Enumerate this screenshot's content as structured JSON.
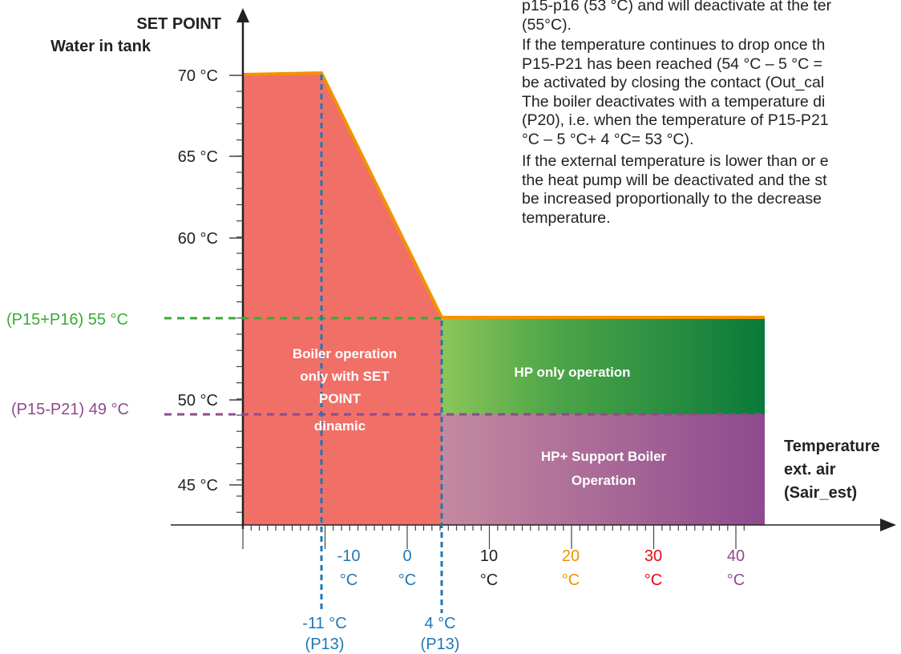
{
  "axis": {
    "y_title": "SET POINT",
    "y_subtitle": "Water in tank",
    "x_title": [
      "Temperature",
      "ext. air",
      "(Sair_est)"
    ]
  },
  "y_ticks": [
    "70 °C",
    "65 °C",
    "60 °C",
    "50 °C",
    "45 °C"
  ],
  "x_ticks": [
    {
      "value": "-10",
      "unit": "°C",
      "color": "#1f77b4"
    },
    {
      "value": "0",
      "unit": "°C",
      "color": "#1f77b4"
    },
    {
      "value": "10",
      "unit": "°C",
      "color": "#222222"
    },
    {
      "value": "20",
      "unit": "°C",
      "color": "#f39200"
    },
    {
      "value": "30",
      "unit": "°C",
      "color": "#e30613"
    },
    {
      "value": "40",
      "unit": "°C",
      "color": "#8e4a8e"
    }
  ],
  "markers": {
    "p15_p16": "(P15+P16) 55 °C",
    "p15_p21": "(P15-P21) 49 °C",
    "p13_low_value": "-11 °C",
    "p13_low_param": "(P13)",
    "p13_high_value": "4 °C",
    "p13_high_param": "(P13)"
  },
  "regions": {
    "boiler": [
      "Boiler operation",
      "only with SET",
      "POINT",
      "dinamic"
    ],
    "hp_only": "HP only operation",
    "hp_support": [
      "HP+ Support Boiler",
      "Operation"
    ]
  },
  "text_lines": [
    "p15-p16 (53 °C) and will deactivate at the ter",
    "(55°C).",
    "If the temperature continues to drop once th",
    "P15-P21 has been reached (54 °C – 5 °C = ",
    "be activated by closing the contact (Out_cal",
    "The boiler deactivates with a temperature di",
    "(P20), i.e. when the temperature of P15-P21",
    "°C – 5 °C+ 4 °C= 53 °C).",
    "If the external temperature is lower than or e",
    "the heat pump will be deactivated and the st",
    "be increased proportionally to the decrease",
    "temperature."
  ],
  "colors": {
    "boiler_fill": "#f07068",
    "setpoint_line": "#f39200",
    "hp_green_start": "#8cc65a",
    "hp_green_end": "#0a7a3a",
    "hp_purple_start": "#c48aa0",
    "hp_purple_end": "#8e4a8e",
    "p16_line": "#3aaa35",
    "p21_line": "#8e4a8e",
    "p13_line": "#1f77b4"
  }
}
